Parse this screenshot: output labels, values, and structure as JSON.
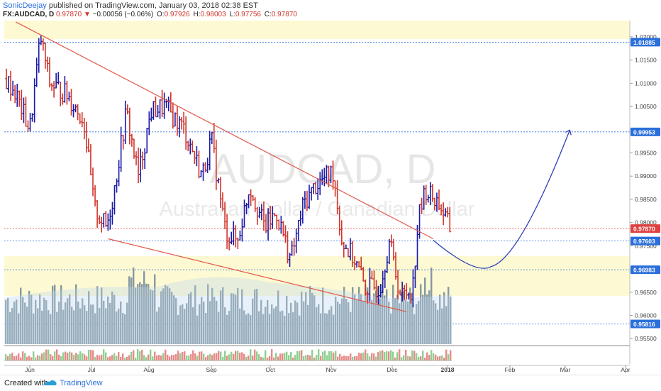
{
  "header": {
    "author": "SonicDeejay",
    "published_text": "published on TradingView.com, January 03, 2018 02:38 EST",
    "symbol": "FX:AUDCAD, D",
    "last": "0.97870",
    "change": "−0.00056 (−0.06%)",
    "open_label": "O:",
    "open": "0.97926",
    "high_label": "H:",
    "high": "0.98003",
    "low_label": "L:",
    "low": "0.97756",
    "close_label": "C:",
    "close": "0.97870"
  },
  "watermark": {
    "symbol": "AUDCAD, D",
    "name": "Australian Dollar / Canadian Dollar"
  },
  "footer": {
    "created_with": "Created with",
    "brand": "TradingView"
  },
  "colors": {
    "up": "#1a1aa8",
    "down": "#d0342c",
    "trendline": "#e05a4a",
    "zone": "#fdf9d3",
    "volume": "#7f929f",
    "price_badge": "#2a6fdb",
    "last_badge": "#e04040"
  },
  "chart_data": {
    "type": "ohlc",
    "title": "AUDCAD, D",
    "ylim": [
      0.9535,
      1.0235
    ],
    "y_ticks": [
      "1.02000",
      "1.01500",
      "1.01000",
      "1.00500",
      "1.00000",
      "0.99500",
      "0.99000",
      "0.98500",
      "0.98000",
      "0.97500",
      "0.96500",
      "0.96000",
      "0.95500"
    ],
    "x_ticks": [
      "Jun",
      "Jul",
      "Aug",
      "Sep",
      "Oct",
      "Nov",
      "Dec",
      "2018",
      "Feb",
      "Mar",
      "Apr"
    ],
    "price_badges": [
      {
        "label": "1.01885",
        "value": 1.01885,
        "kind": "level"
      },
      {
        "label": "0.99953",
        "value": 0.99953,
        "kind": "level"
      },
      {
        "label": "0.97870",
        "value": 0.9787,
        "kind": "last"
      },
      {
        "label": "0.97603",
        "value": 0.97603,
        "kind": "level"
      },
      {
        "label": "0.96983",
        "value": 0.96983,
        "kind": "level"
      },
      {
        "label": "0.95816",
        "value": 0.95816,
        "kind": "level"
      }
    ],
    "zones": [
      {
        "from": 1.0195,
        "to": 1.0235
      },
      {
        "from": 0.9642,
        "to": 0.9728
      }
    ],
    "trendlines": [
      {
        "from": [
          "2017-05-26",
          1.0232
        ],
        "to": [
          "2017-12-29",
          0.9765
        ]
      },
      {
        "from": [
          "2017-07-13",
          0.9765
        ],
        "to": [
          "2017-12-15",
          0.9608
        ]
      }
    ],
    "projection_path": {
      "start": [
        "2017-12-29",
        0.9762
      ],
      "low": [
        "2018-01-28",
        0.9705
      ],
      "end": [
        "2018-03-10",
        0.9999
      ]
    },
    "ohlc_sample": [
      {
        "d": "2017-05-22",
        "o": 1.0125,
        "h": 1.0135,
        "l": 1.0075,
        "c": 1.0095
      },
      {
        "d": "2017-06-05",
        "o": 1.015,
        "h": 1.021,
        "l": 1.013,
        "c": 1.02
      },
      {
        "d": "2017-06-19",
        "o": 1.0095,
        "h": 1.012,
        "l": 0.998,
        "c": 1.0
      },
      {
        "d": "2017-07-05",
        "o": 0.989,
        "h": 0.99,
        "l": 0.983,
        "c": 0.9835
      },
      {
        "d": "2017-07-13",
        "o": 0.981,
        "h": 0.984,
        "l": 0.976,
        "c": 0.9775
      },
      {
        "d": "2017-08-01",
        "o": 1.002,
        "h": 1.0055,
        "l": 0.996,
        "c": 0.9975
      },
      {
        "d": "2017-08-21",
        "o": 1.006,
        "h": 1.0075,
        "l": 1.001,
        "c": 1.003
      },
      {
        "d": "2017-09-05",
        "o": 0.9805,
        "h": 0.983,
        "l": 0.9715,
        "c": 0.9725
      },
      {
        "d": "2017-09-25",
        "o": 0.99,
        "h": 0.991,
        "l": 0.9815,
        "c": 0.983
      },
      {
        "d": "2017-10-20",
        "o": 0.982,
        "h": 0.983,
        "l": 0.9735,
        "c": 0.9745
      },
      {
        "d": "2017-11-03",
        "o": 0.985,
        "h": 0.9915,
        "l": 0.984,
        "c": 0.9905
      },
      {
        "d": "2017-11-24",
        "o": 0.969,
        "h": 0.971,
        "l": 0.962,
        "c": 0.964
      },
      {
        "d": "2017-12-08",
        "o": 0.9635,
        "h": 0.966,
        "l": 0.9585,
        "c": 0.961
      },
      {
        "d": "2017-12-20",
        "o": 0.982,
        "h": 0.988,
        "l": 0.9805,
        "c": 0.987
      },
      {
        "d": "2018-01-02",
        "o": 0.9793,
        "h": 0.98,
        "l": 0.9776,
        "c": 0.9787
      }
    ],
    "annotations": [
      "Ascending projection arrow toward 0.99953"
    ]
  }
}
